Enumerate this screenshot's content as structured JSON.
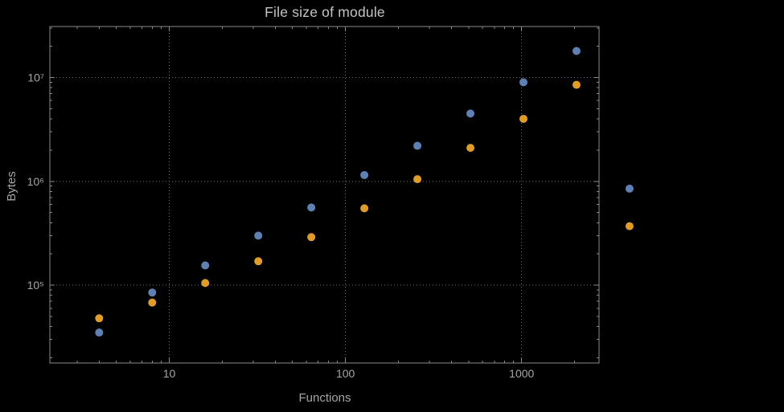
{
  "chart_data": {
    "type": "scatter",
    "title": "File size of module",
    "xlabel": "Functions",
    "ylabel": "Bytes",
    "x_scale": "log",
    "y_scale": "log",
    "xlim": [
      2.1,
      2750
    ],
    "ylim": [
      17800,
      31000000
    ],
    "grid": "dotted",
    "legend": "none",
    "x": [
      4,
      8,
      16,
      32,
      64,
      128,
      256,
      512,
      1024,
      2048,
      4096
    ],
    "series": [
      {
        "name": "series-blue",
        "color": "#5e81b5",
        "values": [
          35000,
          85000,
          155000,
          300000,
          560000,
          1150000,
          2200000,
          4500000,
          9000000,
          18000000,
          850000
        ]
      },
      {
        "name": "series-orange",
        "color": "#e19c24",
        "values": [
          48000,
          68000,
          105000,
          170000,
          290000,
          550000,
          1050000,
          2100000,
          4000000,
          8500000,
          370000
        ]
      }
    ],
    "x_ticks": [
      {
        "value": 10,
        "label": "10"
      },
      {
        "value": 100,
        "label": "100"
      },
      {
        "value": 1000,
        "label": "1000"
      }
    ],
    "y_ticks": [
      {
        "value": 100000,
        "label": "10⁵"
      },
      {
        "value": 1000000,
        "label": "10⁶"
      },
      {
        "value": 10000000,
        "label": "10⁷"
      }
    ]
  },
  "style": {
    "background": "#000000",
    "frame_color": "#8a8a8a",
    "grid_color": "#6f6f6f",
    "tick_label_color": "#a6a6a6",
    "axis_label_color": "#a6a6a6",
    "title_color": "#c4c4c4"
  }
}
